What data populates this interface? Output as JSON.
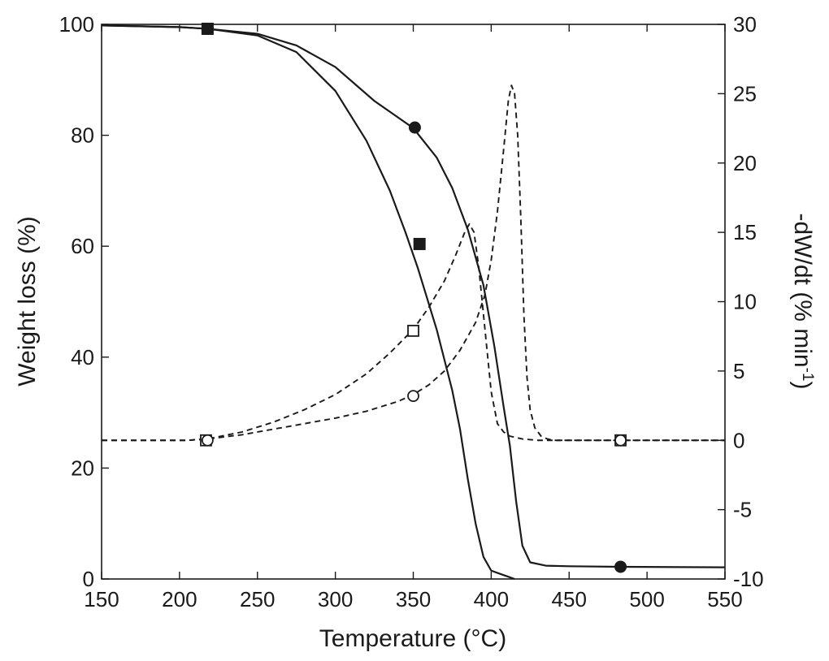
{
  "chart_data": {
    "type": "line",
    "xlabel": "Temperature (°C)",
    "ylabel_left": "Weight loss (%)",
    "ylabel_right_main": "-dW/dt (% min",
    "ylabel_right_sup": "-1",
    "ylabel_right_close": ")",
    "xlim": [
      150,
      550
    ],
    "ylim_left": [
      0,
      100
    ],
    "ylim_right": [
      -10,
      30
    ],
    "x_ticks": [
      "150",
      "200",
      "250",
      "300",
      "350",
      "400",
      "450",
      "500",
      "550"
    ],
    "y_left_ticks": [
      "0",
      "20",
      "40",
      "60",
      "80",
      "100"
    ],
    "y_right_ticks": [
      "-10",
      "-5",
      "0",
      "5",
      "10",
      "15",
      "20",
      "25",
      "30"
    ],
    "grid": false,
    "series": [
      {
        "axis": "left",
        "style": "solid",
        "marker": "filled-square",
        "x": [
          150,
          200,
          218,
          250,
          275,
          300,
          320,
          335,
          345,
          353,
          365,
          375,
          380,
          385,
          390,
          395,
          400,
          405,
          410,
          415
        ],
        "y": [
          99.8,
          99.5,
          99.2,
          98.0,
          95.0,
          88.0,
          79.0,
          70.0,
          62.5,
          56.0,
          45.0,
          34.0,
          27.0,
          18.0,
          10.0,
          4.0,
          1.5,
          1.0,
          0.5,
          0.0
        ],
        "markers": [
          [
            218,
            99.2
          ],
          [
            354,
            60.4
          ]
        ]
      },
      {
        "axis": "left",
        "style": "solid",
        "marker": "filled-circle",
        "x": [
          150,
          200,
          218,
          250,
          275,
          300,
          325,
          350,
          365,
          375,
          385,
          395,
          402,
          408,
          412,
          416,
          420,
          425,
          435,
          450,
          483,
          550
        ],
        "y": [
          99.8,
          99.5,
          99.2,
          98.3,
          96.2,
          92.3,
          86.2,
          81.3,
          76.0,
          70.5,
          63.0,
          53.0,
          42.0,
          31.0,
          24.0,
          14.0,
          6.0,
          3.0,
          2.4,
          2.3,
          2.2,
          2.1
        ],
        "markers": [
          [
            218,
            99.2
          ],
          [
            351,
            81.4
          ],
          [
            483,
            2.2
          ]
        ]
      },
      {
        "axis": "right",
        "style": "dashed",
        "marker": "open-square",
        "x": [
          150,
          205,
          218,
          240,
          260,
          280,
          300,
          320,
          335,
          350,
          360,
          370,
          377,
          383,
          386,
          389,
          392,
          396,
          400,
          404,
          408,
          412,
          416,
          420,
          425,
          430,
          435,
          440,
          460,
          483,
          550
        ],
        "y": [
          0.0,
          0.0,
          0.1,
          0.6,
          1.3,
          2.2,
          3.3,
          4.8,
          6.3,
          8.0,
          9.6,
          11.5,
          13.3,
          15.0,
          15.6,
          15.0,
          12.5,
          8.0,
          3.5,
          1.2,
          0.6,
          0.3,
          0.2,
          0.1,
          0.05,
          0.0,
          0.0,
          0.0,
          0.0,
          0.0,
          0.0
        ],
        "markers": [
          [
            217,
            0.0
          ],
          [
            350,
            7.9
          ],
          [
            483,
            0.0
          ]
        ]
      },
      {
        "axis": "right",
        "style": "dashed",
        "marker": "open-circle",
        "x": [
          150,
          205,
          218,
          240,
          260,
          280,
          300,
          320,
          340,
          350,
          360,
          370,
          380,
          390,
          396,
          400,
          404,
          408,
          411,
          413,
          415,
          417,
          419,
          421,
          423,
          425,
          428,
          432,
          436,
          440,
          460,
          483,
          550
        ],
        "y": [
          0.0,
          0.0,
          0.1,
          0.4,
          0.8,
          1.2,
          1.6,
          2.1,
          2.8,
          3.3,
          4.0,
          5.0,
          6.5,
          8.5,
          10.5,
          13.0,
          16.5,
          21.0,
          24.5,
          25.6,
          25.0,
          22.0,
          16.0,
          9.0,
          4.5,
          2.2,
          0.9,
          0.3,
          0.1,
          0.0,
          0.0,
          0.0,
          0.0
        ],
        "markers": [
          [
            218,
            0.0
          ],
          [
            350,
            3.2
          ],
          [
            483,
            0.0
          ]
        ]
      }
    ]
  }
}
